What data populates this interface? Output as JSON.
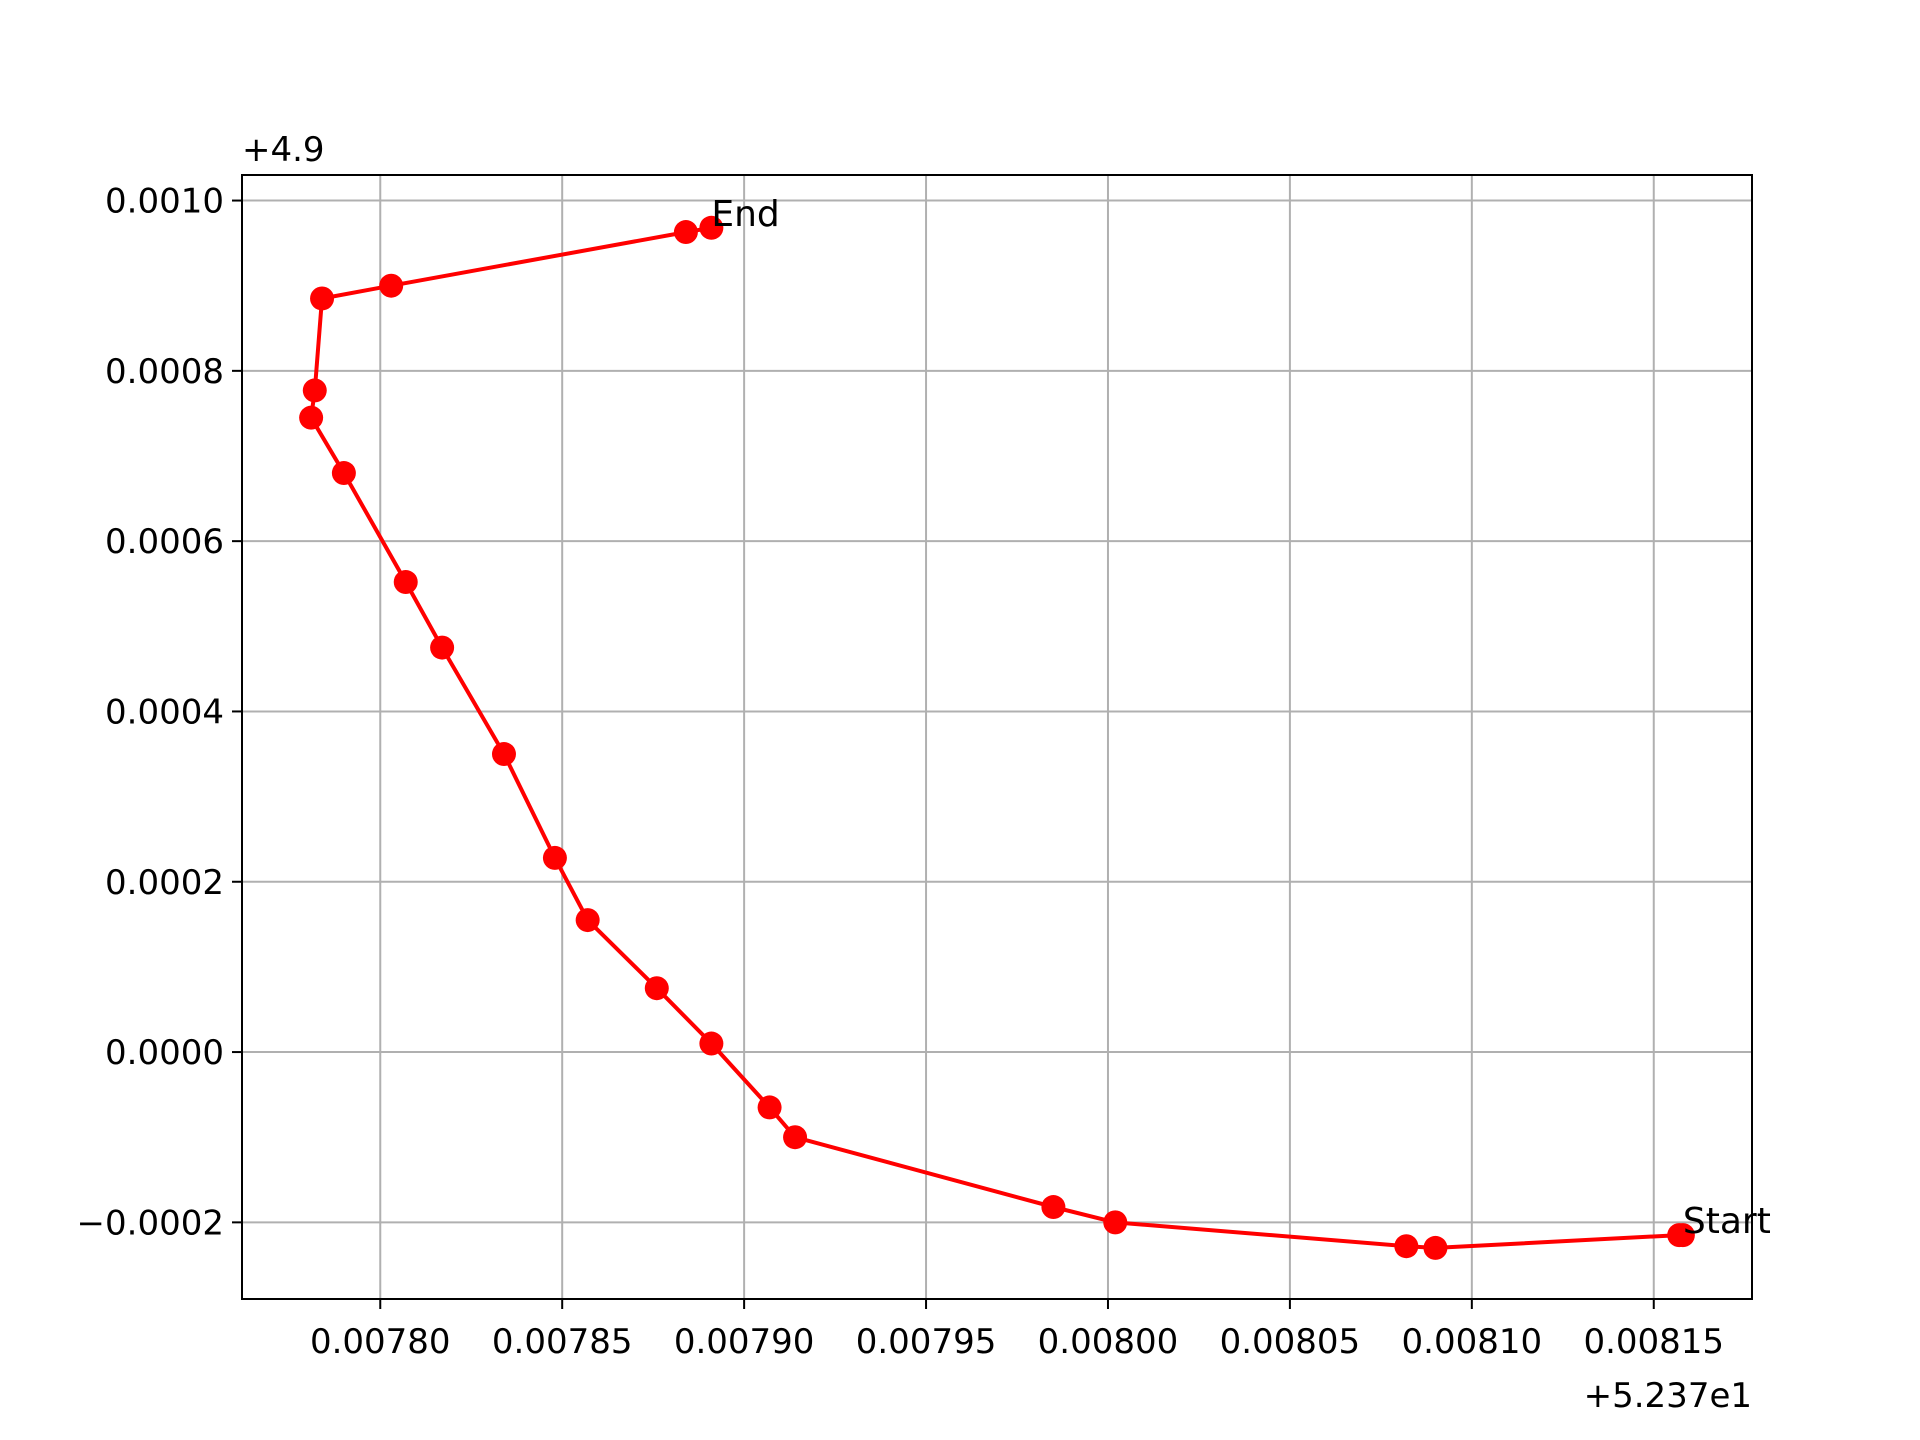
{
  "chart_data": {
    "type": "line",
    "x_offset_label": "+5.237e1",
    "y_offset_label": "+4.9",
    "x_ticks": [
      0.0078,
      0.00785,
      0.0079,
      0.00795,
      0.008,
      0.00805,
      0.0081,
      0.00815
    ],
    "x_tick_labels": [
      "0.00780",
      "0.00785",
      "0.00790",
      "0.00795",
      "0.00800",
      "0.00805",
      "0.00810",
      "0.00815"
    ],
    "y_ticks": [
      -0.0002,
      0.0,
      0.0002,
      0.0004,
      0.0006,
      0.0008,
      0.001
    ],
    "y_tick_labels": [
      "−0.0002",
      "0.0000",
      "0.0002",
      "0.0004",
      "0.0006",
      "0.0008",
      "0.0010"
    ],
    "xlim": [
      0.007762,
      0.008177
    ],
    "ylim": [
      -0.00029,
      0.00103
    ],
    "grid": true,
    "series": [
      {
        "color": "#ff0000",
        "marker": "circle",
        "x": [
          0.008158,
          0.008157,
          0.00809,
          0.008082,
          0.008002,
          0.007985,
          0.007914,
          0.007907,
          0.007891,
          0.007876,
          0.007857,
          0.007848,
          0.007834,
          0.007817,
          0.007807,
          0.00779,
          0.007781,
          0.007782,
          0.007784,
          0.007803,
          0.007884,
          0.007891
        ],
        "y": [
          -0.000215,
          -0.000215,
          -0.00023,
          -0.000228,
          -0.0002,
          -0.000182,
          -0.0001,
          -6.5e-05,
          1e-05,
          7.5e-05,
          0.000155,
          0.000228,
          0.00035,
          0.000475,
          0.000552,
          0.00068,
          0.000745,
          0.000777,
          0.000885,
          0.0009,
          0.000963,
          0.000968
        ]
      }
    ],
    "annotations": [
      {
        "text": "Start",
        "x": 0.008158,
        "y": -0.000215
      },
      {
        "text": "End",
        "x": 0.007891,
        "y": 0.000968
      }
    ]
  }
}
